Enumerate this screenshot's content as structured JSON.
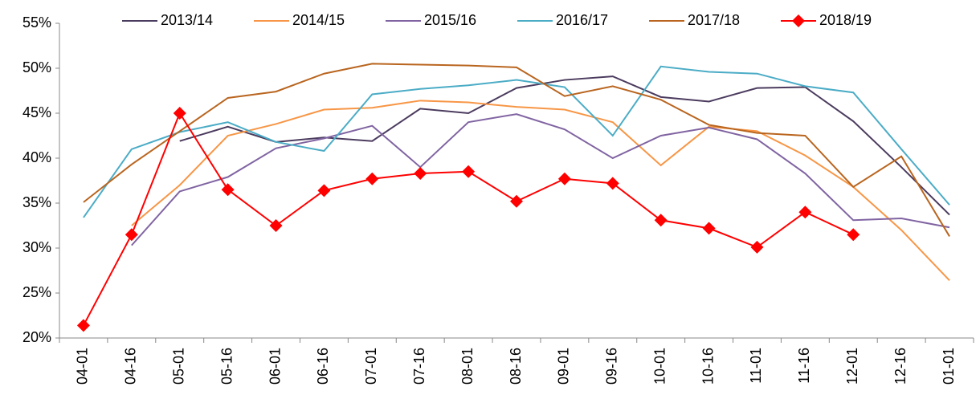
{
  "chart_data": {
    "type": "line",
    "categories": [
      "04-01",
      "04-16",
      "05-01",
      "05-16",
      "06-01",
      "06-16",
      "07-01",
      "07-16",
      "08-01",
      "08-16",
      "09-01",
      "09-16",
      "10-01",
      "10-16",
      "11-01",
      "11-16",
      "12-01",
      "12-16",
      "01-01"
    ],
    "series": [
      {
        "name": "2013/14",
        "color": "#4b3b5e",
        "values": [
          null,
          null,
          41.9,
          43.5,
          41.8,
          42.3,
          41.9,
          45.5,
          45.0,
          47.8,
          48.7,
          49.1,
          46.8,
          46.3,
          47.8,
          47.9,
          44.1,
          39.0,
          33.7
        ]
      },
      {
        "name": "2014/15",
        "color": "#f79646",
        "values": [
          null,
          32.5,
          37.0,
          42.5,
          43.8,
          45.4,
          45.6,
          46.4,
          46.2,
          45.7,
          45.4,
          44.0,
          39.2,
          43.5,
          43.0,
          40.3,
          36.8,
          32.0,
          26.4
        ]
      },
      {
        "name": "2015/16",
        "color": "#8064a2",
        "values": [
          null,
          30.3,
          36.3,
          37.9,
          41.1,
          42.2,
          43.6,
          39.0,
          44.0,
          44.9,
          43.2,
          40.0,
          42.5,
          43.4,
          42.1,
          38.3,
          33.1,
          33.3,
          32.3
        ]
      },
      {
        "name": "2016/17",
        "color": "#4bacc6",
        "values": [
          33.4,
          41.0,
          42.9,
          44.0,
          41.8,
          40.8,
          47.1,
          47.7,
          48.1,
          48.7,
          47.9,
          42.5,
          50.2,
          49.6,
          49.4,
          48.0,
          47.3,
          41.0,
          34.8
        ]
      },
      {
        "name": "2017/18",
        "color": "#b9651f",
        "values": [
          35.1,
          39.3,
          43.0,
          46.7,
          47.4,
          49.4,
          50.5,
          50.4,
          50.3,
          50.1,
          46.9,
          48.0,
          46.5,
          43.7,
          42.8,
          42.5,
          36.8,
          40.2,
          31.3
        ]
      },
      {
        "name": "2018/19",
        "color": "#ff0000",
        "marker": "diamond",
        "values": [
          21.4,
          31.5,
          45.0,
          36.5,
          32.5,
          36.4,
          37.7,
          38.3,
          38.5,
          35.2,
          37.7,
          37.2,
          33.1,
          32.2,
          30.1,
          34.0,
          31.5,
          null,
          null
        ]
      }
    ],
    "ylim": [
      20,
      55
    ],
    "yticks": [
      {
        "value": 20,
        "label": "20%"
      },
      {
        "value": 25,
        "label": "25%"
      },
      {
        "value": 30,
        "label": "30%"
      },
      {
        "value": 35,
        "label": "35%"
      },
      {
        "value": 40,
        "label": "40%"
      },
      {
        "value": 45,
        "label": "45%"
      },
      {
        "value": 50,
        "label": "50%"
      },
      {
        "value": 55,
        "label": "55%"
      }
    ],
    "grid": false,
    "legend": "top"
  }
}
